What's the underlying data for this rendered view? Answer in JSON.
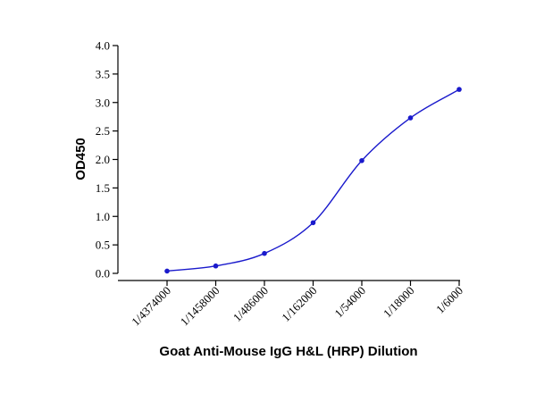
{
  "chart_data": {
    "type": "scatter",
    "title": "",
    "xlabel": "Goat Anti-Mouse IgG H&L (HRP) Dilution",
    "ylabel": "OD450",
    "x_scale": "log3",
    "categories": [
      "1/4374000",
      "1/1458000",
      "1/486000",
      "1/162000",
      "1/54000",
      "1/18000",
      "1/6000"
    ],
    "series": [
      {
        "values": [
          0.04,
          0.13,
          0.35,
          0.89,
          1.98,
          2.73,
          3.23
        ],
        "color": "#1a1acc",
        "markers": true,
        "fit_curve": "sigmoidal"
      }
    ],
    "ylim": [
      0,
      4.0
    ],
    "yticks": [
      "0.0",
      "0.5",
      "1.0",
      "1.5",
      "2.0",
      "2.5",
      "3.0",
      "3.5",
      "4.0"
    ],
    "grid": false,
    "legend": "none"
  }
}
